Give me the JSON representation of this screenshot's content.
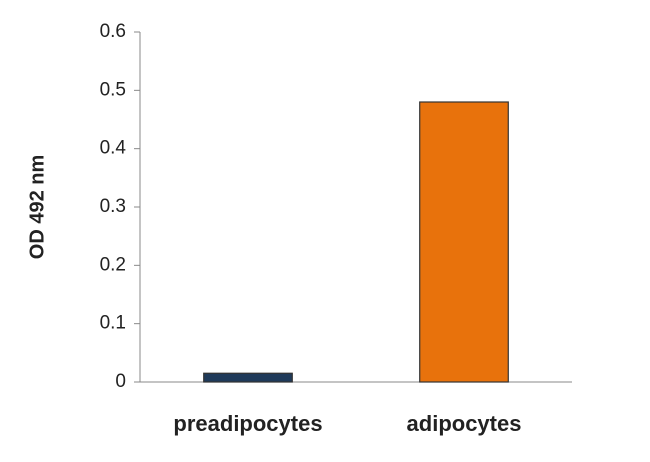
{
  "chart_data": {
    "type": "bar",
    "y_label": "OD 492 nm",
    "categories": [
      "preadipocytes",
      "adipocytes"
    ],
    "values": [
      0.015,
      0.48
    ],
    "colors": [
      "#1f3a5a",
      "#e8720c"
    ],
    "ylim": [
      0,
      0.6
    ],
    "yticks": [
      0,
      0.1,
      0.2,
      0.3,
      0.4,
      0.5,
      0.6
    ],
    "grid": false
  }
}
